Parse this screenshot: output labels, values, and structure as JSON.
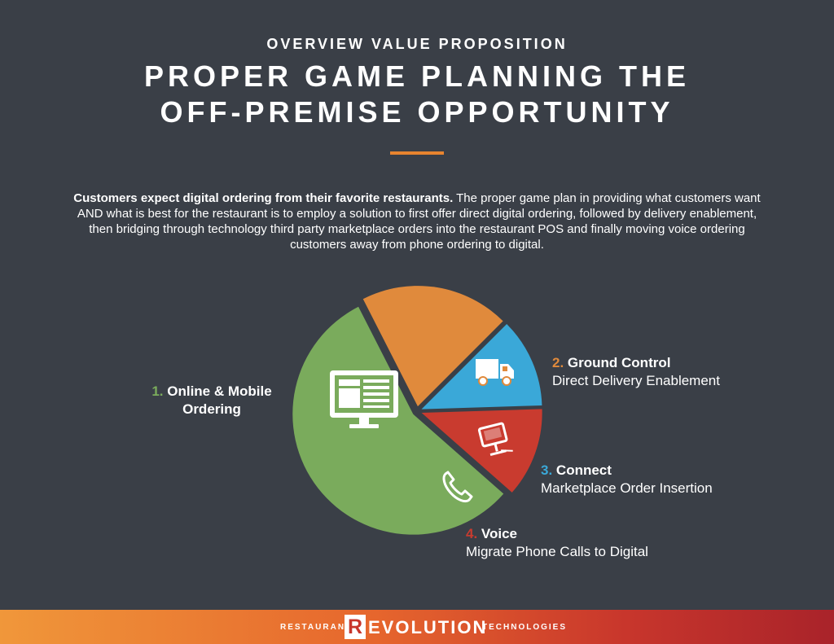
{
  "header": {
    "eyebrow": "OVERVIEW VALUE PROPOSITION",
    "title_line1": "PROPER GAME PLANNING THE",
    "title_line2": "OFF-PREMISE OPPORTUNITY",
    "accent_color": "#e8842f"
  },
  "intro": {
    "bold": "Customers expect digital ordering from their favorite restaurants.",
    "body": " The proper game plan in providing what customers want AND what is best for the restaurant is to employ a solution to first offer direct digital ordering, followed by delivery enablement, then bridging through technology third party marketplace orders into the restaurant POS and finally moving voice ordering customers away from phone ordering to digital."
  },
  "chart_data": {
    "type": "pie",
    "title": "",
    "slices": [
      {
        "number": "1.",
        "name": "Online & Mobile Ordering",
        "line1": "Online & Mobile",
        "line2": "Ordering",
        "subtitle": "",
        "value": 56,
        "color": "#7aab5c",
        "icon": "computer-monitor-icon"
      },
      {
        "number": "2.",
        "name": "Ground Control",
        "subtitle": "Direct Delivery Enablement",
        "value": 20,
        "color": "#e08a3c",
        "icon": "delivery-truck-icon"
      },
      {
        "number": "3.",
        "name": "Connect",
        "subtitle": "Marketplace Order Insertion",
        "value": 12,
        "color": "#3aa8d8",
        "icon": "pos-terminal-icon"
      },
      {
        "number": "4.",
        "name": "Voice",
        "subtitle": "Migrate Phone Calls to Digital",
        "value": 12,
        "color": "#c93b2f",
        "icon": "phone-icon"
      }
    ]
  },
  "footer": {
    "left_word": "RESTAURANT",
    "logo_letter": "R",
    "logo_word": "EVOLUTION",
    "right_word": "TECHNOLOGIES",
    "gradient_start": "#f0973a",
    "gradient_end": "#a9232a"
  }
}
